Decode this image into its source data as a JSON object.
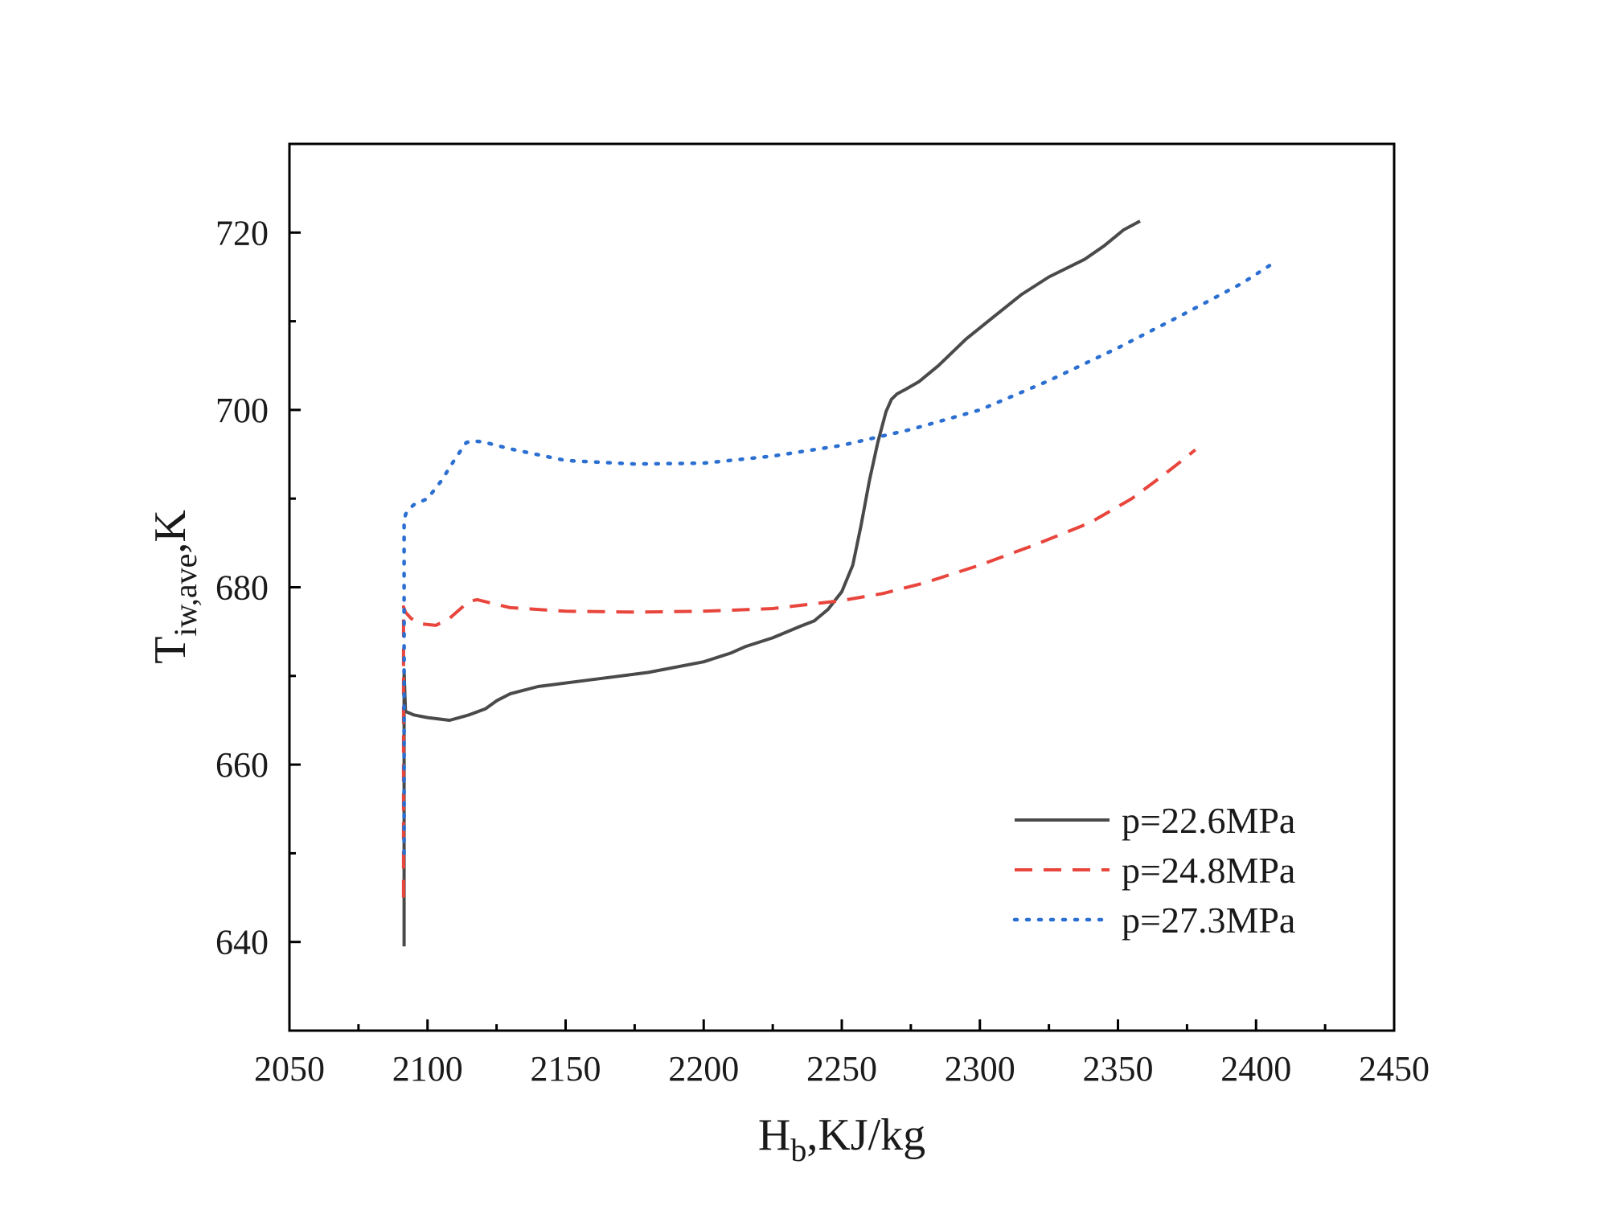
{
  "chart_data": {
    "type": "line",
    "xlabel": {
      "main": "H",
      "sub": "b",
      "rest": ",KJ/kg"
    },
    "ylabel": {
      "main": "T",
      "sub": "iw,ave",
      "rest": ",K"
    },
    "xlim": [
      2050,
      2450
    ],
    "ylim": [
      630,
      730
    ],
    "x_ticks": [
      2050,
      2100,
      2150,
      2200,
      2250,
      2300,
      2350,
      2400,
      2450
    ],
    "y_ticks": [
      640,
      660,
      680,
      700,
      720
    ],
    "x_minor_step": 25,
    "y_minor_step": 10,
    "grid": false,
    "legend_position": "bottom-right",
    "series": [
      {
        "name": "p=22.6MPa",
        "color": "#4a4a4a",
        "style": "solid",
        "x": [
          2091.5,
          2091.5,
          2092,
          2095,
          2100,
          2108,
          2115,
          2121,
          2125,
          2130,
          2140,
          2160,
          2180,
          2200,
          2210,
          2215,
          2225,
          2235,
          2240,
          2245,
          2250,
          2254,
          2257,
          2260,
          2263,
          2266,
          2268,
          2270,
          2273,
          2278,
          2285,
          2295,
          2305,
          2315,
          2325,
          2338,
          2345,
          2352,
          2358
        ],
        "y": [
          639.5,
          670.5,
          666.0,
          665.6,
          665.3,
          665.0,
          665.6,
          666.3,
          667.2,
          668.0,
          668.8,
          669.6,
          670.4,
          671.6,
          672.6,
          673.3,
          674.3,
          675.6,
          676.2,
          677.5,
          679.5,
          682.5,
          687.0,
          692.0,
          696.3,
          699.8,
          701.2,
          701.8,
          702.3,
          703.2,
          705.0,
          708.0,
          710.5,
          713.0,
          715.0,
          717.0,
          718.5,
          720.3,
          721.3
        ]
      },
      {
        "name": "p=24.8MPa",
        "color": "#e8453c",
        "style": "dashed",
        "x": [
          2091.3,
          2091.3,
          2092,
          2094,
          2097,
          2103,
          2108,
          2112,
          2115,
          2118,
          2122,
          2130,
          2150,
          2175,
          2200,
          2225,
          2250,
          2265,
          2280,
          2300,
          2320,
          2340,
          2355,
          2365,
          2372,
          2378
        ],
        "y": [
          645.0,
          677.8,
          677.2,
          676.5,
          675.9,
          675.7,
          676.5,
          677.6,
          678.4,
          678.6,
          678.3,
          677.7,
          677.3,
          677.2,
          677.3,
          677.6,
          678.5,
          679.3,
          680.5,
          682.5,
          684.8,
          687.3,
          690.0,
          692.3,
          694.0,
          695.5
        ]
      },
      {
        "name": "p=27.3MPa",
        "color": "#2b6fd1",
        "style": "dotted",
        "x": [
          2091.5,
          2091.5,
          2092,
          2093,
          2095,
          2100,
          2105,
          2110,
          2114,
          2116,
          2120,
          2130,
          2150,
          2175,
          2200,
          2225,
          2250,
          2275,
          2300,
          2325,
          2350,
          2375,
          2395,
          2405
        ],
        "y": [
          650.0,
          687.0,
          688.2,
          688.7,
          689.3,
          690.0,
          692.0,
          694.5,
          696.3,
          696.5,
          696.4,
          695.6,
          694.3,
          693.9,
          694.0,
          694.8,
          696.0,
          697.8,
          700.0,
          703.3,
          707.0,
          711.0,
          714.3,
          716.3
        ]
      }
    ]
  }
}
